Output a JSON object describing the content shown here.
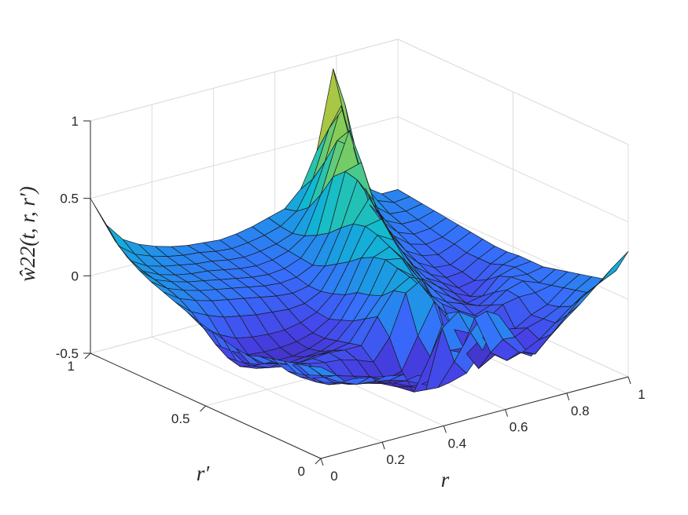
{
  "chart_data": {
    "type": "surface",
    "title": "",
    "xlabel": "r",
    "ylabel": "r′",
    "zlabel": "ŵ22(t, r, r′)",
    "xlim": [
      0,
      1
    ],
    "ylim": [
      0,
      1
    ],
    "zlim": [
      -0.5,
      1
    ],
    "grid": true,
    "colormap": "parula",
    "x_ticks": [
      "0",
      "0.2",
      "0.4",
      "0.6",
      "0.8",
      "1"
    ],
    "y_ticks": [
      "0",
      "0.5",
      "1"
    ],
    "z_ticks": [
      "-0.5",
      "0",
      "0.5",
      "1"
    ],
    "x": [
      0,
      0.0526,
      0.1053,
      0.1579,
      0.2105,
      0.2632,
      0.3158,
      0.3684,
      0.4211,
      0.4737,
      0.5263,
      0.5789,
      0.6316,
      0.6842,
      0.7368,
      0.7895,
      0.8421,
      0.8947,
      0.9474,
      1
    ],
    "y": [
      0,
      0.0526,
      0.1053,
      0.1579,
      0.2105,
      0.2632,
      0.3158,
      0.3684,
      0.4211,
      0.4737,
      0.5263,
      0.5789,
      0.6316,
      0.6842,
      0.7368,
      0.7895,
      0.8421,
      0.8947,
      0.9474,
      1
    ],
    "z_rows_description": "z[i][j] is the value at r′ = y[i], r = x[j]",
    "z": [
      [
        0.09,
        0.01,
        -0.04,
        -0.06,
        -0.08,
        -0.1,
        -0.13,
        -0.18,
        -0.23,
        -0.2,
        -0.08,
        0.12,
        -0.05,
        -0.2,
        -0.12,
        -0.03,
        0.05,
        0.14,
        0.23,
        0.31
      ],
      [
        0.06,
        -0.04,
        -0.1,
        -0.14,
        -0.15,
        -0.17,
        -0.2,
        -0.25,
        -0.3,
        -0.16,
        0.0,
        0.11,
        -0.1,
        -0.21,
        -0.25,
        -0.15,
        -0.05,
        0.05,
        0.1,
        0.15
      ],
      [
        0.04,
        -0.08,
        -0.15,
        -0.17,
        -0.2,
        -0.22,
        -0.25,
        -0.3,
        -0.35,
        0.02,
        0.1,
        0.03,
        -0.22,
        -0.3,
        -0.27,
        -0.22,
        -0.14,
        -0.06,
        0.0,
        0.06
      ],
      [
        0.02,
        -0.11,
        -0.17,
        -0.2,
        -0.24,
        -0.26,
        -0.29,
        -0.34,
        -0.4,
        -0.2,
        0.05,
        -0.2,
        -0.36,
        -0.3,
        -0.23,
        -0.18,
        -0.15,
        -0.1,
        -0.02,
        0.04
      ],
      [
        0.0,
        -0.11,
        -0.16,
        -0.19,
        -0.22,
        -0.25,
        -0.28,
        -0.33,
        -0.3,
        -0.1,
        0.09,
        -0.25,
        -0.3,
        -0.22,
        -0.2,
        -0.22,
        -0.16,
        -0.12,
        -0.04,
        0.02
      ],
      [
        -0.02,
        -0.09,
        -0.13,
        -0.15,
        -0.17,
        -0.18,
        -0.21,
        -0.25,
        -0.12,
        0.14,
        0.2,
        0.0,
        -0.18,
        -0.23,
        -0.17,
        -0.1,
        -0.08,
        -0.08,
        -0.06,
        0.0
      ],
      [
        -0.05,
        -0.13,
        -0.16,
        -0.18,
        -0.18,
        -0.17,
        -0.18,
        -0.18,
        -0.02,
        0.12,
        0.18,
        0.06,
        -0.05,
        -0.12,
        -0.18,
        -0.14,
        -0.07,
        -0.04,
        -0.08,
        -0.02
      ],
      [
        -0.04,
        -0.18,
        -0.22,
        -0.24,
        -0.24,
        -0.22,
        -0.22,
        -0.2,
        -0.07,
        0.05,
        0.2,
        0.12,
        -0.03,
        -0.1,
        -0.14,
        -0.18,
        -0.12,
        -0.05,
        -0.06,
        -0.04
      ],
      [
        -0.02,
        -0.22,
        -0.26,
        -0.28,
        -0.28,
        -0.27,
        -0.26,
        -0.22,
        -0.12,
        0.02,
        0.22,
        0.2,
        0.05,
        -0.06,
        -0.13,
        -0.2,
        -0.18,
        -0.08,
        -0.05,
        -0.04
      ],
      [
        0.0,
        -0.2,
        -0.26,
        -0.3,
        -0.3,
        -0.3,
        -0.28,
        -0.24,
        -0.15,
        0.0,
        0.2,
        0.24,
        0.12,
        -0.02,
        -0.1,
        -0.17,
        -0.22,
        -0.14,
        -0.07,
        -0.04
      ],
      [
        0.02,
        -0.15,
        -0.22,
        -0.27,
        -0.28,
        -0.28,
        -0.27,
        -0.24,
        -0.18,
        -0.05,
        0.16,
        0.28,
        0.22,
        0.05,
        -0.08,
        -0.14,
        -0.2,
        -0.18,
        -0.1,
        -0.05
      ],
      [
        0.05,
        -0.08,
        -0.15,
        -0.2,
        -0.22,
        -0.23,
        -0.23,
        -0.21,
        -0.17,
        -0.08,
        0.1,
        0.3,
        0.32,
        0.12,
        -0.04,
        -0.12,
        -0.17,
        -0.16,
        -0.1,
        -0.05
      ],
      [
        0.08,
        -0.01,
        -0.06,
        -0.1,
        -0.12,
        -0.14,
        -0.15,
        -0.16,
        -0.15,
        -0.1,
        0.05,
        0.28,
        0.42,
        0.22,
        0.02,
        -0.08,
        -0.14,
        -0.15,
        -0.1,
        -0.04
      ],
      [
        0.11,
        0.04,
        0.0,
        -0.03,
        -0.05,
        -0.07,
        -0.09,
        -0.11,
        -0.12,
        -0.1,
        0.0,
        0.22,
        0.5,
        0.34,
        0.1,
        -0.04,
        -0.1,
        -0.12,
        -0.08,
        -0.03
      ],
      [
        0.14,
        0.07,
        0.03,
        0.0,
        -0.02,
        -0.04,
        -0.06,
        -0.08,
        -0.09,
        -0.08,
        -0.03,
        0.15,
        0.52,
        0.55,
        0.2,
        0.02,
        -0.06,
        -0.09,
        -0.07,
        -0.02
      ],
      [
        0.18,
        0.09,
        0.05,
        0.02,
        0.0,
        -0.02,
        -0.04,
        -0.06,
        -0.07,
        -0.06,
        -0.02,
        0.1,
        0.45,
        0.72,
        0.32,
        0.08,
        -0.02,
        -0.06,
        -0.05,
        -0.01
      ],
      [
        0.23,
        0.11,
        0.06,
        0.03,
        0.01,
        0.0,
        -0.02,
        -0.04,
        -0.05,
        -0.04,
        -0.01,
        0.06,
        0.3,
        0.62,
        0.55,
        0.15,
        0.02,
        -0.03,
        -0.03,
        0.0
      ],
      [
        0.3,
        0.14,
        0.08,
        0.05,
        0.03,
        0.01,
        0.0,
        -0.02,
        -0.03,
        -0.02,
        0.0,
        0.04,
        0.18,
        0.45,
        0.78,
        0.35,
        0.08,
        0.0,
        -0.01,
        0.01
      ],
      [
        0.4,
        0.2,
        0.12,
        0.08,
        0.05,
        0.03,
        0.02,
        0.0,
        -0.01,
        0.0,
        0.02,
        0.05,
        0.12,
        0.3,
        0.6,
        0.72,
        0.25,
        0.05,
        0.01,
        0.02
      ],
      [
        0.5,
        0.3,
        0.18,
        0.12,
        0.08,
        0.05,
        0.03,
        0.02,
        0.01,
        0.02,
        0.04,
        0.07,
        0.1,
        0.2,
        0.42,
        0.92,
        0.45,
        0.1,
        0.03,
        0.03
      ]
    ]
  }
}
